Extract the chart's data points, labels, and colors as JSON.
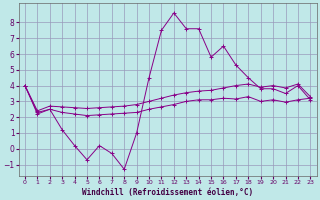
{
  "title": "",
  "xlabel": "Windchill (Refroidissement éolien,°C)",
  "ylabel": "",
  "bg_color": "#c0e8e8",
  "grid_color": "#9999bb",
  "line_color": "#880088",
  "xlim": [
    -0.5,
    23.5
  ],
  "ylim": [
    -1.7,
    9.2
  ],
  "yticks": [
    -1,
    0,
    1,
    2,
    3,
    4,
    5,
    6,
    7,
    8
  ],
  "xticks": [
    0,
    1,
    2,
    3,
    4,
    5,
    6,
    7,
    8,
    9,
    10,
    11,
    12,
    13,
    14,
    15,
    16,
    17,
    18,
    19,
    20,
    21,
    22,
    23
  ],
  "line1_x": [
    0,
    1,
    2,
    3,
    4,
    5,
    6,
    7,
    8,
    9,
    10,
    11,
    12,
    13,
    14,
    15,
    16,
    17,
    18,
    19,
    20,
    21,
    22,
    23
  ],
  "line1_y": [
    4.0,
    2.2,
    2.5,
    1.2,
    0.2,
    -0.7,
    0.2,
    -0.3,
    -1.3,
    1.0,
    4.5,
    7.5,
    8.6,
    7.6,
    7.6,
    5.8,
    6.5,
    5.3,
    4.5,
    3.8,
    3.8,
    3.5,
    4.0,
    3.1
  ],
  "line2_x": [
    0,
    1,
    2,
    3,
    4,
    5,
    6,
    7,
    8,
    9,
    10,
    11,
    12,
    13,
    14,
    15,
    16,
    17,
    18,
    19,
    20,
    21,
    22,
    23
  ],
  "line2_y": [
    4.0,
    2.4,
    2.7,
    2.65,
    2.6,
    2.55,
    2.6,
    2.65,
    2.7,
    2.8,
    3.0,
    3.2,
    3.4,
    3.55,
    3.65,
    3.7,
    3.85,
    4.0,
    4.1,
    3.9,
    4.0,
    3.85,
    4.1,
    3.3
  ],
  "line3_x": [
    0,
    1,
    2,
    3,
    4,
    5,
    6,
    7,
    8,
    9,
    10,
    11,
    12,
    13,
    14,
    15,
    16,
    17,
    18,
    19,
    20,
    21,
    22,
    23
  ],
  "line3_y": [
    4.0,
    2.3,
    2.5,
    2.3,
    2.2,
    2.1,
    2.15,
    2.2,
    2.25,
    2.3,
    2.5,
    2.65,
    2.8,
    3.0,
    3.1,
    3.1,
    3.2,
    3.15,
    3.3,
    3.0,
    3.1,
    2.95,
    3.1,
    3.2
  ]
}
